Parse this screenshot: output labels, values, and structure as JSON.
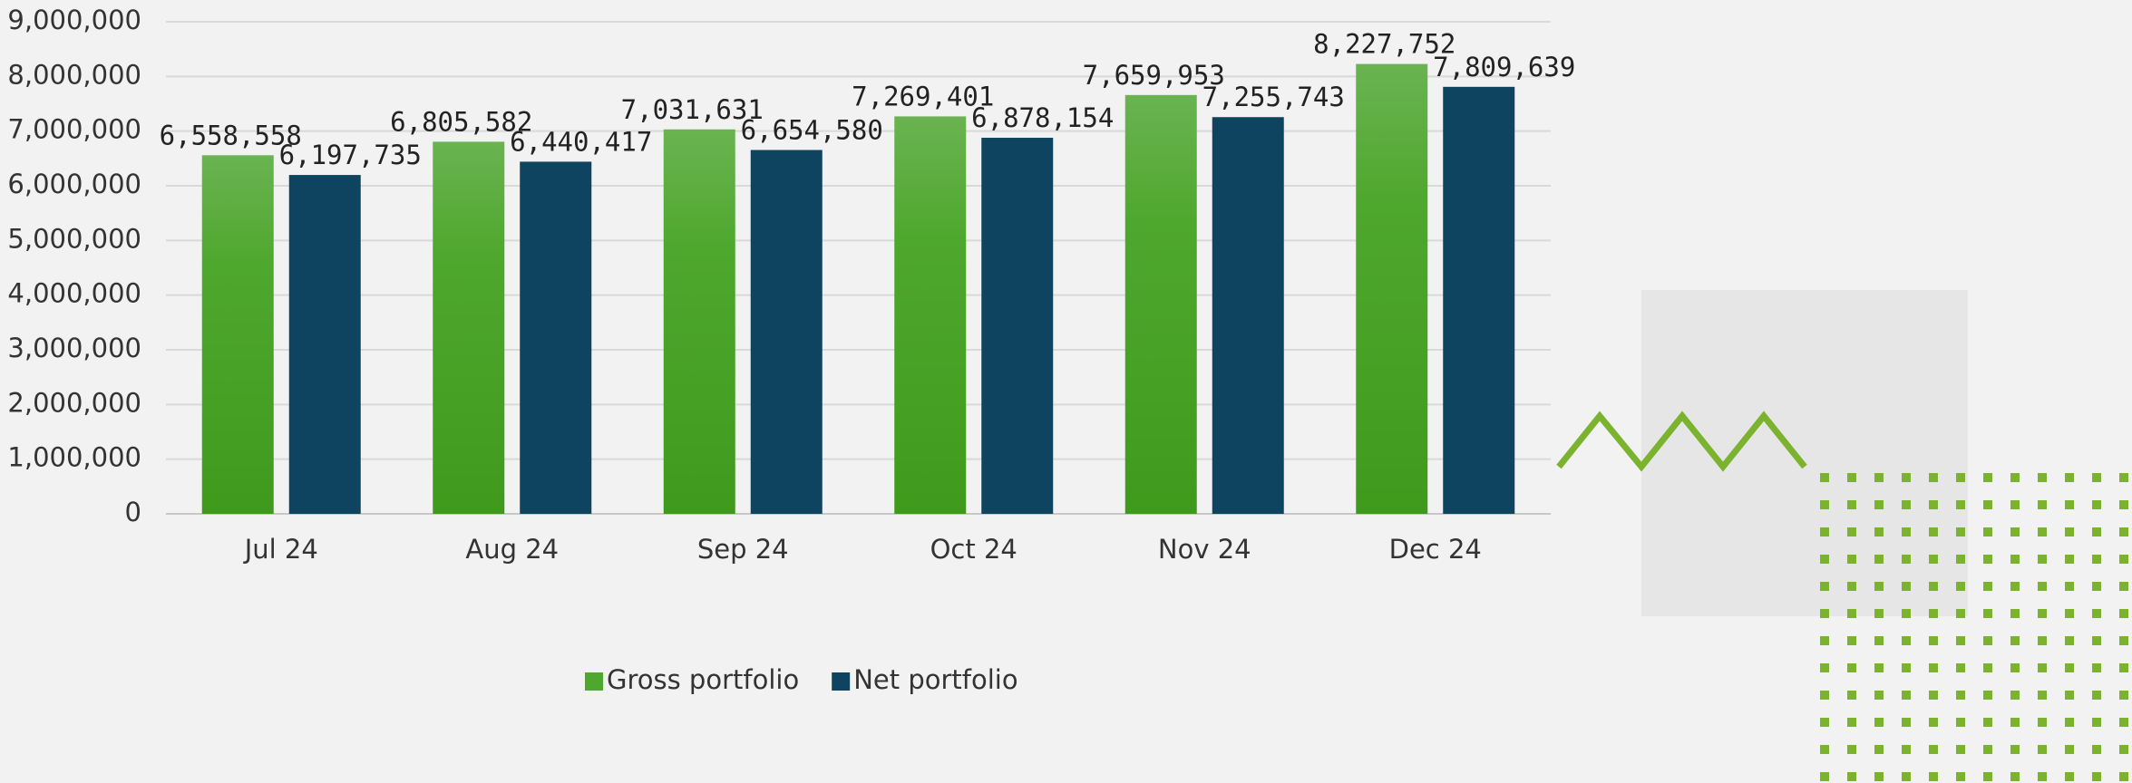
{
  "chart_data": {
    "type": "bar",
    "categories": [
      "Jul 24",
      "Aug 24",
      "Sep 24",
      "Oct 24",
      "Nov 24",
      "Dec 24"
    ],
    "series": [
      {
        "name": "Gross portfolio",
        "color": "#4fa82e",
        "values": [
          6558558,
          6805582,
          7031631,
          7269401,
          7659953,
          8227752
        ],
        "value_labels": [
          "6,558,558",
          "6,805,582",
          "7,031,631",
          "7,269,401",
          "7,659,953",
          "8,227,752"
        ]
      },
      {
        "name": "Net portfolio",
        "color": "#0f4460",
        "values": [
          6197735,
          6440417,
          6654580,
          6878154,
          7255743,
          7809639
        ],
        "value_labels": [
          "6,197,735",
          "6,440,417",
          "6,654,580",
          "6,878,154",
          "7,255,743",
          "7,809,639"
        ]
      }
    ],
    "ylim": [
      0,
      9000000
    ],
    "yticks": [
      0,
      {
        "value": 1000000,
        "label": "1,000,000"
      },
      {
        "value": 2000000,
        "label": "2,000,000"
      },
      {
        "value": 3000000,
        "label": "3,000,000"
      },
      {
        "value": 4000000,
        "label": "4,000,000"
      },
      {
        "value": 5000000,
        "label": "5,000,000"
      },
      {
        "value": 6000000,
        "label": "6,000,000"
      },
      {
        "value": 7000000,
        "label": "7,000,000"
      },
      {
        "value": 8000000,
        "label": "8,000,000"
      },
      {
        "value": 9000000,
        "label": "9,000,000"
      }
    ],
    "grid": true,
    "legend": "bottom"
  }
}
